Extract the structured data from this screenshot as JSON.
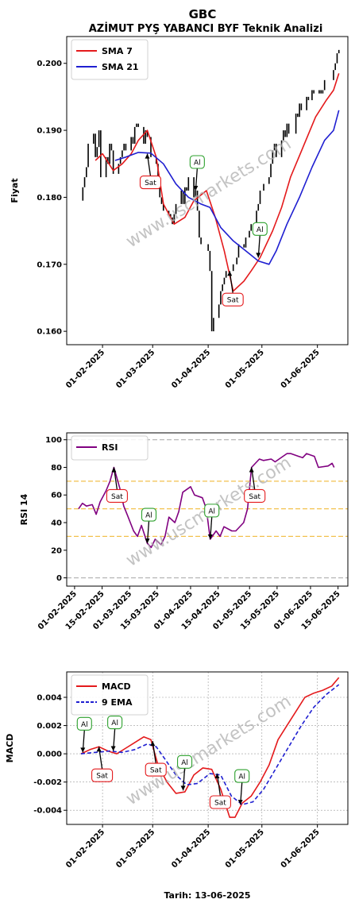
{
  "header": {
    "symbol": "GBC",
    "title": "AZİMUT PYŞ YABANCI BYF Teknik Analizi"
  },
  "footer": {
    "date_label": "Tarih: 13-06-2025"
  },
  "watermark": "www.uscmarkets.com",
  "colors": {
    "price": "#000000",
    "sma7": "#e41a1c",
    "sma21": "#1f1fd1",
    "rsi": "#800080",
    "macd": "#e41a1c",
    "ema9": "#1f1fd1",
    "sell": "#e41a1c",
    "buy": "#2ca02c"
  },
  "chart_data": [
    {
      "type": "line",
      "ylabel": "Fiyat",
      "ylim": [
        0.158,
        0.204
      ],
      "yticks": [
        0.16,
        0.17,
        0.18,
        0.19,
        0.2
      ],
      "ytick_labels": [
        "0.160",
        "0.170",
        "0.180",
        "0.190",
        "0.200"
      ],
      "xlim": [
        "2025-01-12",
        "2025-06-18"
      ],
      "xticks": [
        "2025-02-01",
        "2025-03-01",
        "2025-04-01",
        "2025-05-01",
        "2025-06-01"
      ],
      "xtick_labels": [
        "01-02-2025",
        "01-03-2025",
        "01-04-2025",
        "01-05-2025",
        "01-06-2025"
      ],
      "legend": "top-left",
      "price": {
        "dates": [
          "2025-01-20",
          "2025-01-21",
          "2025-01-22",
          "2025-01-23",
          "2025-01-24",
          "2025-01-27",
          "2025-01-28",
          "2025-01-29",
          "2025-01-30",
          "2025-01-31",
          "2025-02-03",
          "2025-02-04",
          "2025-02-05",
          "2025-02-06",
          "2025-02-07",
          "2025-02-10",
          "2025-02-11",
          "2025-02-12",
          "2025-02-13",
          "2025-02-14",
          "2025-02-17",
          "2025-02-18",
          "2025-02-19",
          "2025-02-20",
          "2025-02-21",
          "2025-02-24",
          "2025-02-25",
          "2025-02-26",
          "2025-02-27",
          "2025-02-28",
          "2025-03-03",
          "2025-03-04",
          "2025-03-05",
          "2025-03-06",
          "2025-03-07",
          "2025-03-10",
          "2025-03-11",
          "2025-03-12",
          "2025-03-13",
          "2025-03-14",
          "2025-03-17",
          "2025-03-18",
          "2025-03-19",
          "2025-03-20",
          "2025-03-21",
          "2025-03-24",
          "2025-03-25",
          "2025-03-26",
          "2025-03-27",
          "2025-03-28",
          "2025-04-01",
          "2025-04-02",
          "2025-04-03",
          "2025-04-04",
          "2025-04-07",
          "2025-04-08",
          "2025-04-09",
          "2025-04-10",
          "2025-04-11",
          "2025-04-14",
          "2025-04-15",
          "2025-04-16",
          "2025-04-17",
          "2025-04-18",
          "2025-04-21",
          "2025-04-22",
          "2025-04-24",
          "2025-04-25",
          "2025-04-28",
          "2025-04-29",
          "2025-04-30",
          "2025-05-02",
          "2025-05-05",
          "2025-05-06",
          "2025-05-07",
          "2025-05-08",
          "2025-05-09",
          "2025-05-12",
          "2025-05-13",
          "2025-05-14",
          "2025-05-15",
          "2025-05-16",
          "2025-05-20",
          "2025-05-21",
          "2025-05-22",
          "2025-05-23",
          "2025-05-26",
          "2025-05-27",
          "2025-05-28",
          "2025-05-29",
          "2025-05-30",
          "2025-06-02",
          "2025-06-03",
          "2025-06-04",
          "2025-06-05",
          "2025-06-10",
          "2025-06-11",
          "2025-06-12",
          "2025-06-13"
        ],
        "values": [
          0.1795,
          0.1815,
          0.183,
          0.1845,
          0.188,
          0.1895,
          0.186,
          0.1875,
          0.19,
          0.183,
          0.186,
          0.185,
          0.188,
          0.187,
          0.1835,
          0.185,
          0.186,
          0.187,
          0.188,
          0.187,
          0.189,
          0.188,
          0.1905,
          0.191,
          0.1905,
          0.188,
          0.19,
          0.189,
          0.189,
          0.186,
          0.185,
          0.183,
          0.18,
          0.179,
          0.178,
          0.1775,
          0.177,
          0.176,
          0.1775,
          0.179,
          0.181,
          0.179,
          0.1815,
          0.181,
          0.183,
          0.18,
          0.181,
          0.178,
          0.174,
          0.173,
          0.172,
          0.169,
          0.16,
          0.162,
          0.164,
          0.166,
          0.167,
          0.168,
          0.169,
          0.169,
          0.17,
          0.17,
          0.171,
          0.173,
          0.1725,
          0.174,
          0.175,
          0.176,
          0.178,
          0.179,
          0.181,
          0.182,
          0.183,
          0.185,
          0.187,
          0.188,
          0.186,
          0.1885,
          0.19,
          0.189,
          0.191,
          0.1895,
          0.1925,
          0.192,
          0.194,
          0.193,
          0.195,
          0.1945,
          0.1945,
          0.196,
          0.1955,
          0.196,
          0.1955,
          0.196,
          0.1975,
          0.199,
          0.2,
          0.2015,
          0.202
        ]
      },
      "series": [
        {
          "name": "SMA 7",
          "dates": [
            "2025-01-28",
            "2025-02-01",
            "2025-02-07",
            "2025-02-12",
            "2025-02-17",
            "2025-02-21",
            "2025-02-26",
            "2025-03-03",
            "2025-03-07",
            "2025-03-13",
            "2025-03-19",
            "2025-03-24",
            "2025-03-31",
            "2025-04-05",
            "2025-04-10",
            "2025-04-15",
            "2025-04-21",
            "2025-04-25",
            "2025-04-30",
            "2025-05-07",
            "2025-05-12",
            "2025-05-17",
            "2025-05-24",
            "2025-05-31",
            "2025-06-06",
            "2025-06-10",
            "2025-06-13"
          ],
          "values": [
            0.1855,
            0.1865,
            0.184,
            0.185,
            0.1865,
            0.1885,
            0.19,
            0.186,
            0.179,
            0.176,
            0.177,
            0.1795,
            0.181,
            0.177,
            0.172,
            0.166,
            0.1675,
            0.169,
            0.171,
            0.175,
            0.1785,
            0.183,
            0.1875,
            0.192,
            0.1945,
            0.196,
            0.1985
          ]
        },
        {
          "name": "SMA 21",
          "dates": [
            "2025-02-08",
            "2025-02-14",
            "2025-02-21",
            "2025-02-28",
            "2025-03-07",
            "2025-03-14",
            "2025-03-21",
            "2025-03-28",
            "2025-04-02",
            "2025-04-08",
            "2025-04-15",
            "2025-04-22",
            "2025-04-29",
            "2025-05-05",
            "2025-05-09",
            "2025-05-15",
            "2025-05-22",
            "2025-05-29",
            "2025-06-05",
            "2025-06-10",
            "2025-06-13"
          ],
          "values": [
            0.1855,
            0.186,
            0.1867,
            0.1866,
            0.185,
            0.182,
            0.18,
            0.179,
            0.1785,
            0.1755,
            0.1735,
            0.172,
            0.1705,
            0.17,
            0.172,
            0.176,
            0.18,
            0.1845,
            0.1885,
            0.19,
            0.193
          ]
        }
      ],
      "annotations": [
        {
          "label": "Sat",
          "kind": "sell",
          "date": "2025-02-26",
          "value": 0.1865
        },
        {
          "label": "Al",
          "kind": "buy",
          "date": "2025-03-25",
          "value": 0.181
        },
        {
          "label": "Sat",
          "kind": "sell",
          "date": "2025-04-13",
          "value": 0.169
        },
        {
          "label": "Al",
          "kind": "buy",
          "date": "2025-04-29",
          "value": 0.171
        }
      ]
    },
    {
      "type": "line",
      "ylabel": "RSI 14",
      "ylim": [
        -6,
        105
      ],
      "yticks": [
        0,
        20,
        40,
        60,
        80,
        100
      ],
      "ytick_labels": [
        "0",
        "20",
        "40",
        "60",
        "80",
        "100"
      ],
      "xlim": [
        "2025-01-28",
        "2025-06-20"
      ],
      "xticks": [
        "2025-02-01",
        "2025-02-15",
        "2025-03-01",
        "2025-03-15",
        "2025-04-01",
        "2025-04-15",
        "2025-05-01",
        "2025-05-15",
        "2025-06-01",
        "2025-06-15"
      ],
      "xtick_labels": [
        "01-02-2025",
        "15-02-2025",
        "01-03-2025",
        "15-03-2025",
        "01-04-2025",
        "15-04-2025",
        "01-05-2025",
        "15-05-2025",
        "01-06-2025",
        "15-06-2025"
      ],
      "hlines_gray": [
        0,
        100
      ],
      "hlines_orange": [
        30,
        50,
        70
      ],
      "legend": "top-left",
      "series": [
        {
          "name": "RSI",
          "dates": [
            "2025-02-03",
            "2025-02-05",
            "2025-02-07",
            "2025-02-10",
            "2025-02-12",
            "2025-02-14",
            "2025-02-17",
            "2025-02-19",
            "2025-02-21",
            "2025-02-24",
            "2025-02-26",
            "2025-02-28",
            "2025-03-03",
            "2025-03-05",
            "2025-03-07",
            "2025-03-10",
            "2025-03-12",
            "2025-03-14",
            "2025-03-17",
            "2025-03-19",
            "2025-03-21",
            "2025-03-24",
            "2025-03-26",
            "2025-03-28",
            "2025-04-01",
            "2025-04-03",
            "2025-04-07",
            "2025-04-09",
            "2025-04-11",
            "2025-04-14",
            "2025-04-16",
            "2025-04-18",
            "2025-04-22",
            "2025-04-24",
            "2025-04-28",
            "2025-04-30",
            "2025-05-02",
            "2025-05-06",
            "2025-05-08",
            "2025-05-12",
            "2025-05-14",
            "2025-05-16",
            "2025-05-20",
            "2025-05-22",
            "2025-05-26",
            "2025-05-28",
            "2025-05-30",
            "2025-06-03",
            "2025-06-05",
            "2025-06-10",
            "2025-06-12",
            "2025-06-13"
          ],
          "values": [
            50,
            54,
            52,
            53,
            46,
            55,
            63,
            70,
            80,
            65,
            52,
            45,
            34,
            30,
            38,
            25,
            22,
            28,
            24,
            30,
            44,
            40,
            48,
            62,
            66,
            60,
            58,
            50,
            28,
            34,
            30,
            37,
            34,
            34,
            40,
            50,
            80,
            86,
            85,
            86,
            84,
            86,
            90,
            90,
            88,
            87,
            90,
            88,
            80,
            81,
            83,
            80
          ]
        }
      ],
      "annotations": [
        {
          "label": "Sat",
          "kind": "sell",
          "date": "2025-02-21",
          "value": 80
        },
        {
          "label": "Al",
          "kind": "buy",
          "date": "2025-03-10",
          "value": 25
        },
        {
          "label": "Al",
          "kind": "buy",
          "date": "2025-04-11",
          "value": 28
        },
        {
          "label": "Sat",
          "kind": "sell",
          "date": "2025-05-02",
          "value": 80
        }
      ]
    },
    {
      "type": "line",
      "ylabel": "MACD",
      "xlabel": "Tarih: 13-06-2025",
      "ylim": [
        -0.005,
        0.0058
      ],
      "yticks": [
        -0.004,
        -0.002,
        0.0,
        0.002,
        0.004
      ],
      "ytick_labels": [
        "-0.004",
        "-0.002",
        "0.000",
        "0.002",
        "0.004"
      ],
      "xlim": [
        "2025-01-12",
        "2025-06-18"
      ],
      "xticks": [
        "2025-02-01",
        "2025-03-01",
        "2025-04-01",
        "2025-05-01",
        "2025-06-01"
      ],
      "xtick_labels": [
        "01-02-2025",
        "01-03-2025",
        "01-04-2025",
        "01-05-2025",
        "01-06-2025"
      ],
      "grid": true,
      "legend": "top-left",
      "series": [
        {
          "name": "MACD",
          "dates": [
            "2025-01-20",
            "2025-01-25",
            "2025-01-30",
            "2025-02-04",
            "2025-02-09",
            "2025-02-14",
            "2025-02-19",
            "2025-02-24",
            "2025-02-28",
            "2025-03-04",
            "2025-03-09",
            "2025-03-14",
            "2025-03-19",
            "2025-03-24",
            "2025-03-29",
            "2025-04-03",
            "2025-04-08",
            "2025-04-13",
            "2025-04-16",
            "2025-04-20",
            "2025-04-25",
            "2025-04-30",
            "2025-05-05",
            "2025-05-10",
            "2025-05-15",
            "2025-05-20",
            "2025-05-25",
            "2025-05-30",
            "2025-06-04",
            "2025-06-09",
            "2025-06-13"
          ],
          "values": [
            0.0,
            0.0003,
            0.0005,
            0.0002,
            0.0,
            0.0004,
            0.0008,
            0.0012,
            0.001,
            -0.0008,
            -0.002,
            -0.0028,
            -0.0027,
            -0.0015,
            -0.001,
            -0.0011,
            -0.0025,
            -0.0045,
            -0.0045,
            -0.0035,
            -0.003,
            -0.002,
            -0.0008,
            0.001,
            0.002,
            0.003,
            0.004,
            0.0043,
            0.0045,
            0.0048,
            0.0054
          ]
        },
        {
          "name": "9 EMA",
          "dates": [
            "2025-01-20",
            "2025-01-28",
            "2025-02-05",
            "2025-02-12",
            "2025-02-19",
            "2025-02-26",
            "2025-03-03",
            "2025-03-08",
            "2025-03-14",
            "2025-03-20",
            "2025-03-26",
            "2025-04-02",
            "2025-04-08",
            "2025-04-14",
            "2025-04-20",
            "2025-04-26",
            "2025-05-02",
            "2025-05-09",
            "2025-05-16",
            "2025-05-23",
            "2025-05-30",
            "2025-06-06",
            "2025-06-13"
          ],
          "values": [
            0.0,
            0.0001,
            0.0002,
            0.0001,
            0.0003,
            0.0007,
            0.0005,
            -0.0004,
            -0.0015,
            -0.0022,
            -0.0021,
            -0.0014,
            -0.0015,
            -0.003,
            -0.0036,
            -0.0034,
            -0.0025,
            -0.001,
            0.0005,
            0.002,
            0.0033,
            0.0042,
            0.0049
          ]
        }
      ],
      "annotations": [
        {
          "label": "Al",
          "kind": "buy",
          "date": "2025-01-21",
          "value": 0.0001
        },
        {
          "label": "Sat",
          "kind": "sell",
          "date": "2025-01-30",
          "value": 0.0005
        },
        {
          "label": "Al",
          "kind": "buy",
          "date": "2025-02-07",
          "value": 0.0002
        },
        {
          "label": "Sat",
          "kind": "sell",
          "date": "2025-03-01",
          "value": 0.0009
        },
        {
          "label": "Al",
          "kind": "buy",
          "date": "2025-03-18",
          "value": -0.0026
        },
        {
          "label": "Sat",
          "kind": "sell",
          "date": "2025-04-06",
          "value": -0.0014
        },
        {
          "label": "Al",
          "kind": "buy",
          "date": "2025-04-19",
          "value": -0.0036
        }
      ]
    }
  ]
}
